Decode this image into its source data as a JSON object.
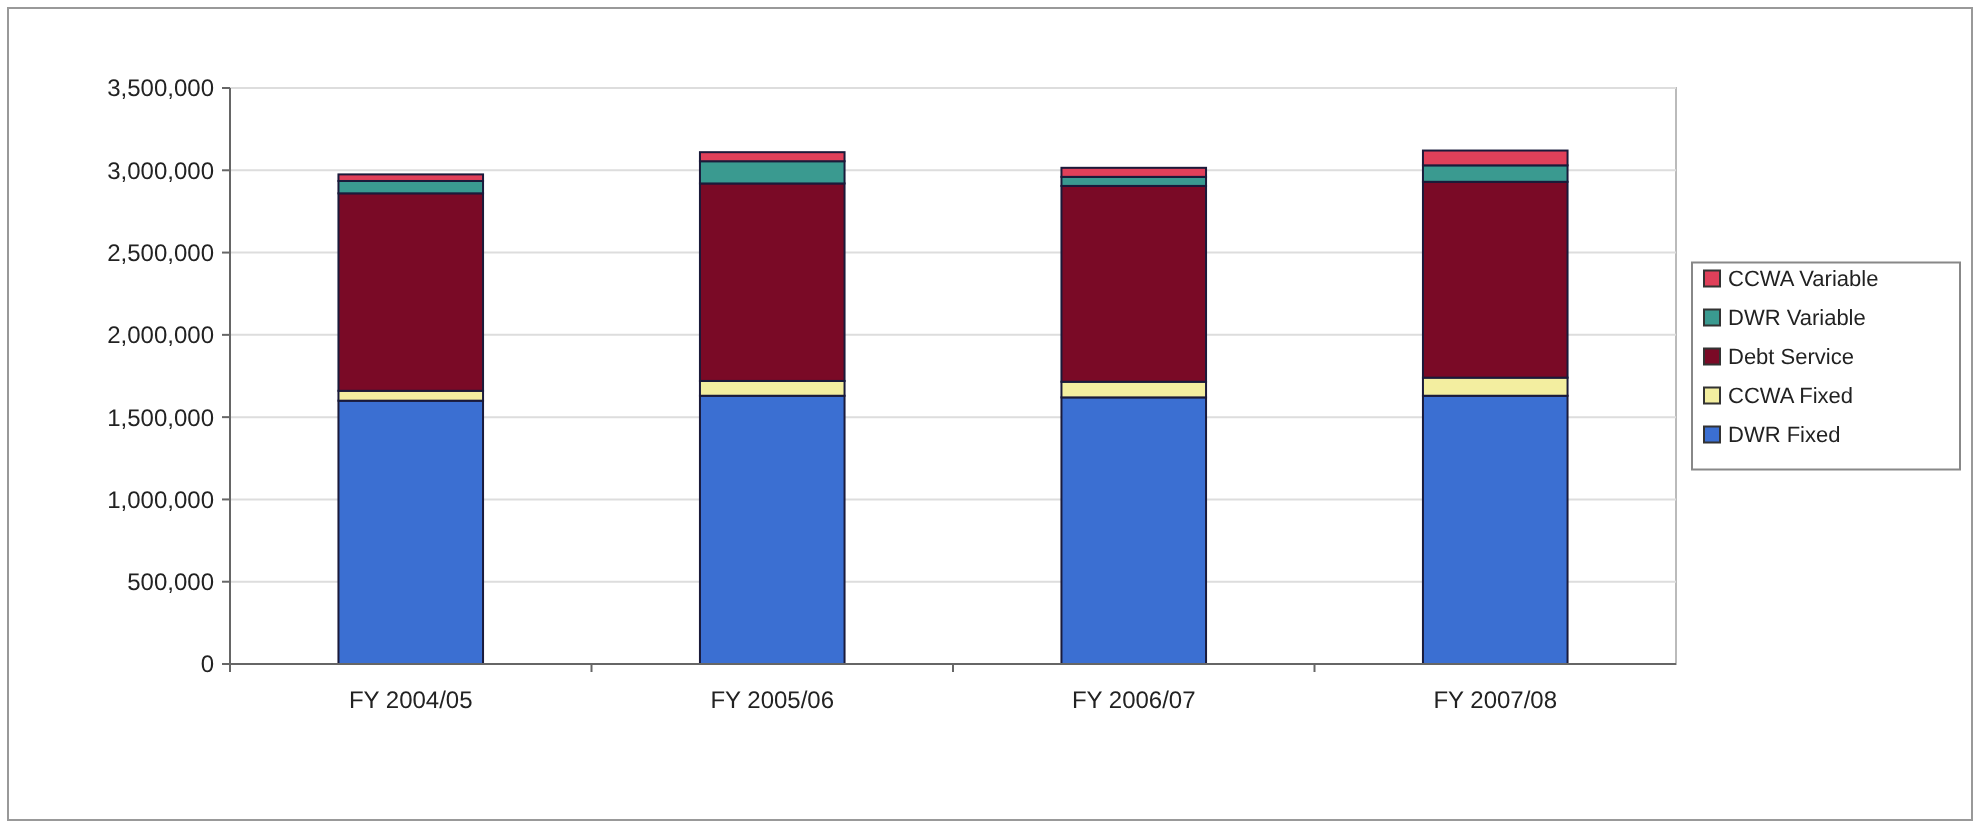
{
  "chart_data": {
    "type": "bar",
    "stacked": true,
    "categories": [
      "FY 2004/05",
      "FY 2005/06",
      "FY 2006/07",
      "FY 2007/08"
    ],
    "series": [
      {
        "name": "DWR Fixed",
        "color": "#3b6fd2",
        "values": [
          1600000,
          1630000,
          1620000,
          1630000
        ]
      },
      {
        "name": "CCWA Fixed",
        "color": "#f3eea0",
        "values": [
          60000,
          90000,
          95000,
          110000
        ]
      },
      {
        "name": "Debt Service",
        "color": "#7a0a26",
        "values": [
          1200000,
          1200000,
          1190000,
          1190000
        ]
      },
      {
        "name": "DWR Variable",
        "color": "#3a9a90",
        "values": [
          75000,
          135000,
          55000,
          100000
        ]
      },
      {
        "name": "CCWA Variable",
        "color": "#e0405a",
        "values": [
          40000,
          55000,
          55000,
          90000
        ]
      }
    ],
    "ylim": [
      0,
      3500000
    ],
    "yticks": [
      {
        "value": 0,
        "label": "0"
      },
      {
        "value": 500000,
        "label": "500,000"
      },
      {
        "value": 1000000,
        "label": "1,000,000"
      },
      {
        "value": 1500000,
        "label": "1,500,000"
      },
      {
        "value": 2000000,
        "label": "2,000,000"
      },
      {
        "value": 2500000,
        "label": "2,500,000"
      },
      {
        "value": 3000000,
        "label": "3,000,000"
      },
      {
        "value": 3500000,
        "label": "3,500,000"
      }
    ],
    "grid": "y",
    "legend": "right"
  }
}
